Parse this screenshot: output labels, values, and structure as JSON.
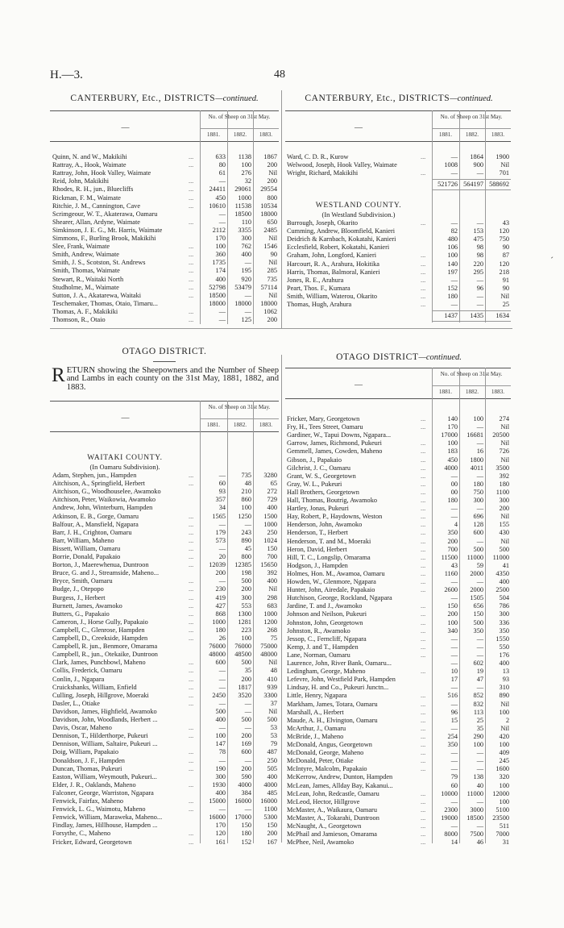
{
  "page": {
    "code": "H.—3.",
    "number": "48"
  },
  "canterbury_left": {
    "title": "CANTERBURY, Etc., DISTRICTS",
    "title_suffix": "—continued.",
    "blank_header": "—",
    "group_header": "No. of Sheep on 31st May.",
    "years": [
      "1881.",
      "1882.",
      "1883."
    ],
    "rows": [
      [
        "Quinn, N. and W., Makikihi",
        "...",
        "633",
        "1138",
        "1867"
      ],
      [
        "Rattray, A., Hook, Waimate",
        "...",
        "80",
        "100",
        "200"
      ],
      [
        "Rattray, John, Hook Valley, Waimate",
        "",
        "61",
        "276",
        "Nil"
      ],
      [
        "Reid, John, Makikihi",
        "...",
        "—",
        "32",
        "200"
      ],
      [
        "Rhodes, R. H., jun., Bluecliffs",
        "...",
        "24411",
        "29061",
        "29554"
      ],
      [
        "Rickman, F. M., Waimate",
        "...",
        "450",
        "1000",
        "800"
      ],
      [
        "Ritchie, J. M., Cannington, Cave",
        "...",
        "10610",
        "11538",
        "10534"
      ],
      [
        "Scrimgeour, W. T., Akaterawa, Oamaru",
        "",
        "—",
        "18500",
        "18000"
      ],
      [
        "Shearer, Allan, Ardyne, Waimate",
        "...",
        "—",
        "110",
        "650"
      ],
      [
        "Simkinson, J. E. G., Mt. Harris, Waimate",
        "",
        "2112",
        "3355",
        "2485"
      ],
      [
        "Simmons, F., Burling Brook, Makikihi",
        "",
        "170",
        "300",
        "Nil"
      ],
      [
        "Slee, Frank, Waimate",
        "...",
        "100",
        "762",
        "1546"
      ],
      [
        "Smith, Andrew, Waimate",
        "...",
        "360",
        "400",
        "90"
      ],
      [
        "Smith, J. S., Scotston, St. Andrews",
        "...",
        "1735",
        "—",
        "Nil"
      ],
      [
        "Smith, Thomas, Waimate",
        "...",
        "174",
        "195",
        "285"
      ],
      [
        "Stewart, R., Waitaki North",
        "...",
        "400",
        "920",
        "735"
      ],
      [
        "Studholme, M., Waimate",
        "...",
        "52798",
        "53479",
        "57114"
      ],
      [
        "Sutton, J. A., Akatarewa, Waitaki",
        "...",
        "18500",
        "—",
        "Nil"
      ],
      [
        "Teschemaker, Thomas, Otaio, Timaru...",
        "",
        "18000",
        "18000",
        "18000"
      ],
      [
        "Thomas, A. F., Makikiki",
        "...",
        "—",
        "—",
        "1062"
      ],
      [
        "Thomson, R., Otaio",
        "...",
        "—",
        "125",
        "200"
      ]
    ]
  },
  "canterbury_right": {
    "title": "CANTERBURY, Etc., DISTRICTS",
    "title_suffix": "—continued.",
    "blank_header": "—",
    "group_header": "No. of Sheep on 31st May.",
    "years": [
      "1881.",
      "1882.",
      "1883."
    ],
    "rows": [
      [
        "Ward, C. D. R., Kurow",
        "...",
        "—",
        "1864",
        "1900"
      ],
      [
        "Welwood, Joseph, Hook Valley, Waimate",
        "",
        "1008",
        "900",
        "Nil"
      ],
      [
        "Wright, Richard, Makikihi",
        "...",
        "—",
        "—",
        "701"
      ]
    ],
    "totals": [
      "521726",
      "564197",
      "588692"
    ],
    "westland": {
      "heading": "WESTLAND COUNTY.",
      "subheading": "(In Westland Subdivision.)",
      "rows": [
        [
          "Burrough, Joseph, Okarito",
          "...",
          "—",
          "—",
          "43"
        ],
        [
          "Cumming, Andrew, Bloomfield, Kanieri",
          "",
          "82",
          "153",
          "120"
        ],
        [
          "Deidrich & Karnbach, Kokatahi, Kanieri",
          "",
          "480",
          "475",
          "750"
        ],
        [
          "Ecclesfield, Robert, Kokatahi, Kanieri",
          "",
          "106",
          "98",
          "90"
        ],
        [
          "Graham, John, Longford, Kanieri",
          "...",
          "100",
          "98",
          "87"
        ],
        [
          "Harcourt, R. A., Arahura, Hokitika",
          "...",
          "140",
          "220",
          "120"
        ],
        [
          "Harris, Thomas, Balmoral, Kanieri",
          "...",
          "197",
          "295",
          "218"
        ],
        [
          "Jones, R. E., Arahura",
          "...",
          "—",
          "—",
          "91"
        ],
        [
          "Peart, Thos. F., Kumara",
          "...",
          "152",
          "96",
          "90"
        ],
        [
          "Smith, William, Waterou, Okarito",
          "...",
          "180",
          "—",
          "Nil"
        ],
        [
          "Thomas, Hugh, Arahura",
          "...",
          "—",
          "—",
          "25"
        ]
      ],
      "totals": [
        "1437",
        "1435",
        "1634"
      ]
    }
  },
  "otago_left": {
    "title": "OTAGO DISTRICT.",
    "intro_dropcap": "R",
    "intro": "ETURN showing the Sheepowners and the Number of Sheep and Lambs in each county on the 31st May, 1881, 1882, and 1883.",
    "blank_header": "—",
    "group_header": "No. of Sheep on 31st May.",
    "years": [
      "1881.",
      "1882.",
      "1883."
    ],
    "heading": "WAITAKI COUNTY.",
    "subheading": "(In Oamaru Subdivision).",
    "rows": [
      [
        "Adam, Stephen, jun., Hampden",
        "...",
        "—",
        "735",
        "3280"
      ],
      [
        "Aitchison, A., Springfield, Herbert",
        "...",
        "60",
        "48",
        "65"
      ],
      [
        "Aitchison, G., Woodhouselee, Awamoko",
        "",
        "93",
        "210",
        "272"
      ],
      [
        "Aitchison, Peter, Waikowia, Awamoko",
        "",
        "357",
        "860",
        "729"
      ],
      [
        "Andrew, John, Winterburn, Hampden",
        "",
        "34",
        "100",
        "400"
      ],
      [
        "Atkinson, E. B., Gorge, Oamaru",
        "...",
        "1565",
        "1250",
        "1500"
      ],
      [
        "Balfour, A., Mansfield, Ngapara",
        "...",
        "—",
        "—",
        "1000"
      ],
      [
        "Barr, J. H., Crighton, Oamaru",
        "...",
        "179",
        "243",
        "250"
      ],
      [
        "Barr, William, Maheno",
        "...",
        "573",
        "890",
        "1024"
      ],
      [
        "Bissett, William, Oamaru",
        "...",
        "—",
        "45",
        "150"
      ],
      [
        "Borrie, Donald, Papakaio",
        "...",
        "20",
        "800",
        "700"
      ],
      [
        "Borton, J., Maerewhenua, Duntroon",
        "...",
        "12039",
        "12385",
        "15650"
      ],
      [
        "Bruce, G. and J., Streamside, Maheno...",
        "",
        "200",
        "198",
        "392"
      ],
      [
        "Bryce, Smith, Oamaru",
        "...",
        "—",
        "500",
        "400"
      ],
      [
        "Budge, J., Otepopo",
        "...",
        "230",
        "200",
        "Nil"
      ],
      [
        "Burgess, J., Herbert",
        "...",
        "419",
        "300",
        "298"
      ],
      [
        "Burnett, James, Awamoko",
        "...",
        "427",
        "553",
        "683"
      ],
      [
        "Butters, G., Papakaio",
        "...",
        "868",
        "1300",
        "1000"
      ],
      [
        "Cameron, J., Horse Gully, Papakaio",
        "...",
        "1000",
        "1281",
        "1200"
      ],
      [
        "Campbell, C., Glenrose, Hampden",
        "...",
        "180",
        "223",
        "268"
      ],
      [
        "Campbell, D., Creekside, Hampden",
        "...",
        "26",
        "100",
        "75"
      ],
      [
        "Campbell, R. jun., Benmore, Omarama",
        "",
        "76000",
        "76000",
        "75000"
      ],
      [
        "Campbell, R., jun., Otekaike, Duntroon",
        "",
        "48000",
        "48500",
        "48000"
      ],
      [
        "Clark, James, Punchbowl, Maheno",
        "...",
        "600",
        "500",
        "Nil"
      ],
      [
        "Collis, Frederick, Oamaru",
        "...",
        "—",
        "35",
        "48"
      ],
      [
        "Conlin, J., Ngapara",
        "...",
        "—",
        "200",
        "410"
      ],
      [
        "Cruickshanks, William, Enfield",
        "...",
        "—",
        "1817",
        "939"
      ],
      [
        "Culling, Joseph, Hillgrove, Moeraki",
        "...",
        "2450",
        "3520",
        "3300"
      ],
      [
        "Dasler, L., Otiake",
        "...",
        "—",
        "—",
        "37"
      ],
      [
        "Davidson, James, Highfield, Awamoko",
        "",
        "500",
        "—",
        "Nil"
      ],
      [
        "Davidson, John, Woodlands, Herbert ...",
        "",
        "400",
        "500",
        "500"
      ],
      [
        "Davis, Oscar, Maheno",
        "...",
        "—",
        "—",
        "53"
      ],
      [
        "Dennison, T., Hilderthorpe, Pukeuri",
        "...",
        "100",
        "200",
        "53"
      ],
      [
        "Dennison, William, Saltaire, Pukeuri ...",
        "",
        "147",
        "169",
        "79"
      ],
      [
        "Doig, William, Papakaio",
        "...",
        "78",
        "600",
        "487"
      ],
      [
        "Donaldson, J. F., Hampden",
        "...",
        "—",
        "—",
        "250"
      ],
      [
        "Duncan, Thomas, Pukeuri",
        "...",
        "190",
        "200",
        "505"
      ],
      [
        "Easton, William, Weymouth, Pukeuri...",
        "",
        "300",
        "590",
        "400"
      ],
      [
        "Elder, J. R., Oaklands, Maheno",
        "...",
        "1930",
        "4000",
        "4000"
      ],
      [
        "Falconer, George, Warriston, Ngapara",
        "",
        "400",
        "384",
        "485"
      ],
      [
        "Fenwick, Fairfax, Maheno",
        "...",
        "15000",
        "16000",
        "16000"
      ],
      [
        "Fenwick, L. G., Waimotu, Maheno",
        "...",
        "—",
        "—",
        "1100"
      ],
      [
        "Fenwick, William, Maraweka, Maheno...",
        "",
        "16000",
        "17000",
        "5300"
      ],
      [
        "Findlay, James, Hillhouse, Hampden ...",
        "",
        "170",
        "150",
        "150"
      ],
      [
        "Forsythe, C., Maheno",
        "...",
        "120",
        "180",
        "200"
      ],
      [
        "Fricker, Edward, Georgetown",
        "...",
        "161",
        "152",
        "167"
      ]
    ]
  },
  "otago_right": {
    "title": "OTAGO DISTRICT",
    "title_suffix": "—continued.",
    "blank_header": "—",
    "group_header": "No. of Sheep on 31st May.",
    "years": [
      "1881.",
      "1882.",
      "1883."
    ],
    "rows": [
      [
        "Fricker, Mary, Georgetown",
        "...",
        "140",
        "100",
        "274"
      ],
      [
        "Fry, H., Tees Street, Oamaru",
        "...",
        "170",
        "—",
        "Nil"
      ],
      [
        "Gardiner, W., Tapui Downs, Ngapara...",
        "",
        "17000",
        "16681",
        "20500"
      ],
      [
        "Garrow, James, Richmond, Pukeuri",
        "...",
        "100",
        "—",
        "Nil"
      ],
      [
        "Gemmell, James, Cowden, Maheno",
        "...",
        "183",
        "16",
        "726"
      ],
      [
        "Gibson, J., Papakaio",
        "...",
        "450",
        "1800",
        "Nil"
      ],
      [
        "Gilchrist, J. C., Oamaru",
        "...",
        "4000",
        "4011",
        "3500"
      ],
      [
        "Grant, W. S., Georgetown",
        "...",
        "—",
        "—",
        "392"
      ],
      [
        "Gray, W. L., Pukeuri",
        "...",
        "00",
        "180",
        "180"
      ],
      [
        "Hall Brothers, Georgetown",
        "...",
        "00",
        "750",
        "1100"
      ],
      [
        "Hall, Thomas, Boutrig, Awamoko",
        "...",
        "180",
        "300",
        "300"
      ],
      [
        "Hartley, Jonas, Pukeuri",
        "...",
        "—",
        "—",
        "200"
      ],
      [
        "Hay, Robert, P., Haydowns, Weston",
        "...",
        "—",
        "696",
        "Nil"
      ],
      [
        "Henderson, John, Awamoko",
        "...",
        "4",
        "128",
        "155"
      ],
      [
        "Henderson, T., Herbert",
        "...",
        "350",
        "600",
        "430"
      ],
      [
        "Henderson, T. and M., Moeraki",
        "...",
        "200",
        "—",
        "Nil"
      ],
      [
        "Heron, David, Herbert",
        "...",
        "700",
        "500",
        "500"
      ],
      [
        "Hill, T. C., Longslip, Omarama",
        "...",
        "11500",
        "11000",
        "11000"
      ],
      [
        "Hodgson, J., Hampden",
        "...",
        "43",
        "59",
        "41"
      ],
      [
        "Holmes, Hon. M., Awamoa, Oamaru",
        "...",
        "1160",
        "2000",
        "4350"
      ],
      [
        "Howden, W., Glenmore, Ngapara",
        "...",
        "—",
        "—",
        "400"
      ],
      [
        "Hunter, John, Airedale, Papakaio",
        "...",
        "2600",
        "2000",
        "2500"
      ],
      [
        "Hutchison, George, Rockland, Ngapara",
        "",
        "—",
        "1505",
        "504"
      ],
      [
        "Jardine, T. and J., Awamoko",
        "...",
        "150",
        "656",
        "786"
      ],
      [
        "Johnson and Neilson, Pukeuri",
        "...",
        "200",
        "150",
        "300"
      ],
      [
        "Johnston, John, Georgetown",
        "...",
        "100",
        "500",
        "336"
      ],
      [
        "Johnston, R., Awamoko",
        "...",
        "340",
        "350",
        "350"
      ],
      [
        "Jessop, C., Ferncliff, Ngapara",
        "...",
        "—",
        "—",
        "1550"
      ],
      [
        "Kemp, J. and T., Hampden",
        "...",
        "—",
        "—",
        "550"
      ],
      [
        "Lane, Norman, Oamaru",
        "...",
        "—",
        "—",
        "176"
      ],
      [
        "Laurence, John, River Bank, Oamaru...",
        "",
        "—",
        "602",
        "400"
      ],
      [
        "Ledingham, George, Maheno",
        "...",
        "10",
        "19",
        "13"
      ],
      [
        "Lefevre, John, Westfield Park, Hampden",
        "",
        "17",
        "47",
        "93"
      ],
      [
        "Lindsay, H. and Co., Pukeuri Junctn...",
        "",
        "—",
        "—",
        "310"
      ],
      [
        "Little, Henry, Ngapara",
        "...",
        "516",
        "852",
        "890"
      ],
      [
        "Markham, James, Totara, Oamaru",
        "...",
        "—",
        "832",
        "Nil"
      ],
      [
        "Marshall, A., Herbert",
        "...",
        "96",
        "113",
        "100"
      ],
      [
        "Maude, A. H., Elvington, Oamaru",
        "...",
        "15",
        "25",
        "2"
      ],
      [
        "McArthur, J., Oamaru",
        "...",
        "—",
        "35",
        "Nil"
      ],
      [
        "McBride, J., Maheno",
        "...",
        "254",
        "290",
        "420"
      ],
      [
        "McDonald, Angus, Georgetown",
        "...",
        "350",
        "100",
        "100"
      ],
      [
        "McDonald, George, Maheno",
        "...",
        "—",
        "—",
        "409"
      ],
      [
        "McDonald, Peter, Otiake",
        "...",
        "—",
        "—",
        "245"
      ],
      [
        "McIntyre, Malcolm, Papakaio",
        "...",
        "—",
        "—",
        "1600"
      ],
      [
        "McKerrow, Andrew, Dunton, Hampden",
        "",
        "79",
        "138",
        "320"
      ],
      [
        "McLean, James, Allday Bay, Kakanui...",
        "",
        "60",
        "40",
        "100"
      ],
      [
        "McLean, John, Redcastle, Oamaru",
        "...",
        "10000",
        "11000",
        "12000"
      ],
      [
        "McLeod, Hector, Hillgrove",
        "...",
        "—",
        "—",
        "100"
      ],
      [
        "McMaster, A., Waikaura, Oamaru",
        "...",
        "2300",
        "3000",
        "5100"
      ],
      [
        "McMaster, A., Tokarahi, Duntroon",
        "...",
        "19000",
        "18500",
        "23500"
      ],
      [
        "McNaught, A., Georgetown",
        "...",
        "—",
        "—",
        "511"
      ],
      [
        "McPhail and Jamieson, Omarama",
        "...",
        "8000",
        "7500",
        "7000"
      ],
      [
        "McPhee, Neil, Awamoko",
        "...",
        "14",
        "46",
        "31"
      ]
    ]
  }
}
